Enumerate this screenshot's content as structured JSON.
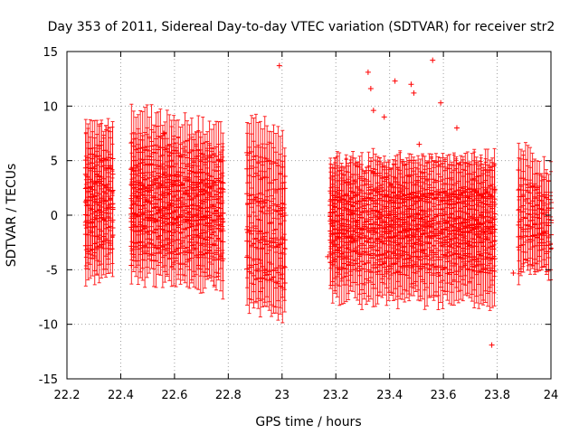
{
  "chart_data": {
    "type": "scatter",
    "title": "Day 353 of 2011, Sidereal Day-to-day VTEC variation (SDTVAR) for receiver str2",
    "xlabel": "GPS time / hours",
    "ylabel": "SDTVAR / TECUs",
    "xlim": [
      22.2,
      24.0
    ],
    "ylim": [
      -15,
      15
    ],
    "x_ticks": [
      22.2,
      22.4,
      22.6,
      22.8,
      23.0,
      23.2,
      23.4,
      23.6,
      23.8,
      24.0
    ],
    "x_tick_labels": [
      "22.2",
      "22.4",
      "22.6",
      "22.8",
      "23",
      "23.2",
      "23.4",
      "23.6",
      "23.8",
      "24"
    ],
    "y_ticks": [
      -15,
      -10,
      -5,
      0,
      5,
      10,
      15
    ],
    "y_tick_labels": [
      "-15",
      "-10",
      "-5",
      "0",
      "5",
      "10",
      "15"
    ],
    "grid": true,
    "marker": "plus",
    "color": "#ff0000",
    "error_bar_halfwidth": 3.2,
    "series": [
      {
        "name": "block-1",
        "x_start": 22.27,
        "x_end": 22.37,
        "step": 0.0083,
        "tracks": [
          [
            5.5,
            4.8
          ],
          [
            4.2,
            5.3
          ],
          [
            3.6,
            2.2
          ],
          [
            2.6,
            4.2
          ],
          [
            1.6,
            0.9
          ],
          [
            0.3,
            1.3
          ],
          [
            -1.0,
            -0.4
          ],
          [
            -1.9,
            -1.4
          ],
          [
            -3.0,
            -2.1
          ],
          [
            -0.6,
            0.6
          ]
        ]
      },
      {
        "name": "block-2",
        "x_start": 22.44,
        "x_end": 22.78,
        "step": 0.0083,
        "tracks": [
          [
            6.2,
            4.9
          ],
          [
            4.6,
            3.4
          ],
          [
            3.9,
            2.6
          ],
          [
            2.9,
            2.1
          ],
          [
            1.9,
            1.7
          ],
          [
            1.0,
            0.3
          ],
          [
            0.1,
            -0.8
          ],
          [
            -0.5,
            -1.8
          ],
          [
            -1.2,
            -2.6
          ],
          [
            -2.4,
            -3.6
          ],
          [
            -0.2,
            -0.1
          ]
        ]
      },
      {
        "name": "block-3",
        "x_start": 22.87,
        "x_end": 23.01,
        "step": 0.0083,
        "tracks": [
          [
            5.8,
            4.0
          ],
          [
            4.2,
            2.1
          ],
          [
            1.7,
            0.4
          ],
          [
            -1.4,
            -2.6
          ],
          [
            -2.6,
            -2.7
          ],
          [
            -4.1,
            -5.2
          ],
          [
            -4.9,
            -6.3
          ]
        ]
      },
      {
        "name": "block-4",
        "x_start": 23.18,
        "x_end": 23.79,
        "step": 0.0083,
        "tracks": [
          [
            2.1,
            1.4
          ],
          [
            1.0,
            2.1
          ],
          [
            0.3,
            0.8
          ],
          [
            -0.2,
            -0.3
          ],
          [
            -0.9,
            -1.1
          ],
          [
            -1.7,
            -1.4
          ],
          [
            -2.3,
            -2.5
          ],
          [
            -3.4,
            -3.9
          ],
          [
            -4.7,
            -5.1
          ],
          [
            0.4,
            -0.6
          ],
          [
            1.6,
            1.9
          ]
        ]
      },
      {
        "name": "block-5",
        "x_start": 23.88,
        "x_end": 24.0,
        "step": 0.0083,
        "tracks": [
          [
            4.0,
            0.8
          ],
          [
            2.2,
            -0.7
          ],
          [
            0.5,
            -1.8
          ],
          [
            -0.8,
            -2.6
          ],
          [
            -1.9,
            0.9
          ],
          [
            -2.6,
            -1.1
          ]
        ]
      }
    ],
    "outliers": [
      {
        "x": 22.99,
        "y": 13.7
      },
      {
        "x": 22.92,
        "y": -7.0
      },
      {
        "x": 23.17,
        "y": -3.8
      },
      {
        "x": 23.32,
        "y": 13.1
      },
      {
        "x": 23.33,
        "y": 11.6
      },
      {
        "x": 23.34,
        "y": 9.6
      },
      {
        "x": 23.38,
        "y": 9.0
      },
      {
        "x": 23.42,
        "y": 12.3
      },
      {
        "x": 23.48,
        "y": 12.0
      },
      {
        "x": 23.49,
        "y": 11.2
      },
      {
        "x": 23.51,
        "y": 6.5
      },
      {
        "x": 23.56,
        "y": 14.2
      },
      {
        "x": 23.59,
        "y": 10.3
      },
      {
        "x": 23.65,
        "y": 8.0
      },
      {
        "x": 23.78,
        "y": -11.9
      },
      {
        "x": 23.86,
        "y": -5.3
      },
      {
        "x": 22.56,
        "y": 7.5
      },
      {
        "x": 22.44,
        "y": -4.6
      }
    ]
  }
}
